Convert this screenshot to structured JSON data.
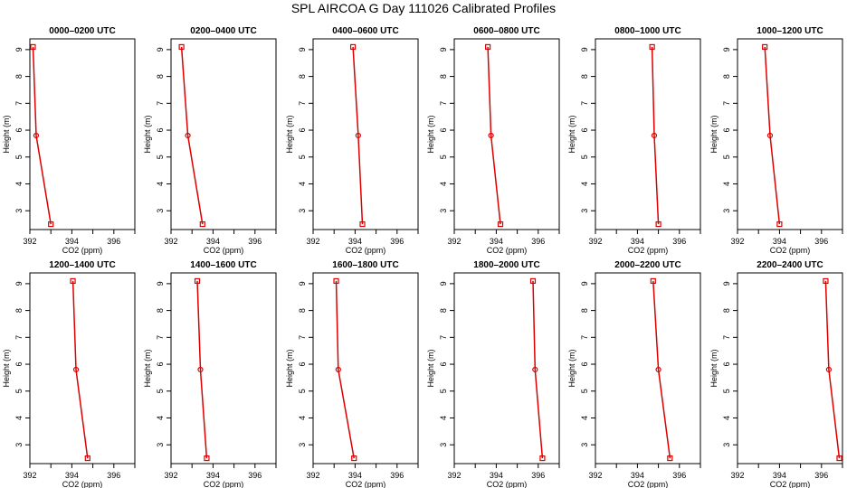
{
  "title": "SPL AIRCOA G  Day 111026  Calibrated Profiles",
  "chart_data": [
    {
      "type": "line",
      "title": "0000–0200 UTC",
      "xlabel": "CO2 (ppm)",
      "ylabel": "Height (m)",
      "xlim": [
        392,
        397
      ],
      "ylim": [
        2.3,
        9.4
      ],
      "x_ticks": [
        392,
        394,
        396
      ],
      "y_ticks": [
        3,
        4,
        5,
        6,
        7,
        8,
        9
      ],
      "color": "#dd0000",
      "points": [
        {
          "x": 392.15,
          "y": 9.1
        },
        {
          "x": 392.3,
          "y": 5.8
        },
        {
          "x": 393.0,
          "y": 2.5
        }
      ]
    },
    {
      "type": "line",
      "title": "0200–0400 UTC",
      "xlabel": "CO2 (ppm)",
      "ylabel": "Height (m)",
      "xlim": [
        392,
        397
      ],
      "ylim": [
        2.3,
        9.4
      ],
      "x_ticks": [
        392,
        394,
        396
      ],
      "y_ticks": [
        3,
        4,
        5,
        6,
        7,
        8,
        9
      ],
      "color": "#dd0000",
      "points": [
        {
          "x": 392.5,
          "y": 9.1
        },
        {
          "x": 392.8,
          "y": 5.8
        },
        {
          "x": 393.5,
          "y": 2.5
        }
      ]
    },
    {
      "type": "line",
      "title": "0400–0600 UTC",
      "xlabel": "CO2 (ppm)",
      "ylabel": "Height (m)",
      "xlim": [
        392,
        397
      ],
      "ylim": [
        2.3,
        9.4
      ],
      "x_ticks": [
        392,
        394,
        396
      ],
      "y_ticks": [
        3,
        4,
        5,
        6,
        7,
        8,
        9
      ],
      "color": "#dd0000",
      "points": [
        {
          "x": 393.9,
          "y": 9.1
        },
        {
          "x": 394.15,
          "y": 5.8
        },
        {
          "x": 394.35,
          "y": 2.5
        }
      ]
    },
    {
      "type": "line",
      "title": "0600–0800 UTC",
      "xlabel": "CO2 (ppm)",
      "ylabel": "Height (m)",
      "xlim": [
        392,
        397
      ],
      "ylim": [
        2.3,
        9.4
      ],
      "x_ticks": [
        392,
        394,
        396
      ],
      "y_ticks": [
        3,
        4,
        5,
        6,
        7,
        8,
        9
      ],
      "color": "#dd0000",
      "points": [
        {
          "x": 393.6,
          "y": 9.1
        },
        {
          "x": 393.75,
          "y": 5.8
        },
        {
          "x": 394.2,
          "y": 2.5
        }
      ]
    },
    {
      "type": "line",
      "title": "0800–1000 UTC",
      "xlabel": "CO2 (ppm)",
      "ylabel": "Height (m)",
      "xlim": [
        392,
        397
      ],
      "ylim": [
        2.3,
        9.4
      ],
      "x_ticks": [
        392,
        394,
        396
      ],
      "y_ticks": [
        3,
        4,
        5,
        6,
        7,
        8,
        9
      ],
      "color": "#dd0000",
      "points": [
        {
          "x": 394.7,
          "y": 9.1
        },
        {
          "x": 394.8,
          "y": 5.8
        },
        {
          "x": 395.0,
          "y": 2.5
        }
      ]
    },
    {
      "type": "line",
      "title": "1000–1200 UTC",
      "xlabel": "CO2 (ppm)",
      "ylabel": "Height (m)",
      "xlim": [
        392,
        397
      ],
      "ylim": [
        2.3,
        9.4
      ],
      "x_ticks": [
        392,
        394,
        396
      ],
      "y_ticks": [
        3,
        4,
        5,
        6,
        7,
        8,
        9
      ],
      "color": "#dd0000",
      "points": [
        {
          "x": 393.3,
          "y": 9.1
        },
        {
          "x": 393.55,
          "y": 5.8
        },
        {
          "x": 394.0,
          "y": 2.5
        }
      ]
    },
    {
      "type": "line",
      "title": "1200–1400 UTC",
      "xlabel": "CO2 (ppm)",
      "ylabel": "Height (m)",
      "xlim": [
        392,
        397
      ],
      "ylim": [
        2.3,
        9.4
      ],
      "x_ticks": [
        392,
        394,
        396
      ],
      "y_ticks": [
        3,
        4,
        5,
        6,
        7,
        8,
        9
      ],
      "color": "#dd0000",
      "points": [
        {
          "x": 394.05,
          "y": 9.1
        },
        {
          "x": 394.2,
          "y": 5.8
        },
        {
          "x": 394.75,
          "y": 2.5
        }
      ]
    },
    {
      "type": "line",
      "title": "1400–1600 UTC",
      "xlabel": "CO2 (ppm)",
      "ylabel": "Height (m)",
      "xlim": [
        392,
        397
      ],
      "ylim": [
        2.3,
        9.4
      ],
      "x_ticks": [
        392,
        394,
        396
      ],
      "y_ticks": [
        3,
        4,
        5,
        6,
        7,
        8,
        9
      ],
      "color": "#dd0000",
      "points": [
        {
          "x": 393.25,
          "y": 9.1
        },
        {
          "x": 393.4,
          "y": 5.8
        },
        {
          "x": 393.7,
          "y": 2.5
        }
      ]
    },
    {
      "type": "line",
      "title": "1600–1800 UTC",
      "xlabel": "CO2 (ppm)",
      "ylabel": "Height (m)",
      "xlim": [
        392,
        397
      ],
      "ylim": [
        2.3,
        9.4
      ],
      "x_ticks": [
        392,
        394,
        396
      ],
      "y_ticks": [
        3,
        4,
        5,
        6,
        7,
        8,
        9
      ],
      "color": "#dd0000",
      "points": [
        {
          "x": 393.1,
          "y": 9.1
        },
        {
          "x": 393.2,
          "y": 5.8
        },
        {
          "x": 393.95,
          "y": 2.5
        }
      ]
    },
    {
      "type": "line",
      "title": "1800–2000 UTC",
      "xlabel": "CO2 (ppm)",
      "ylabel": "Height (m)",
      "xlim": [
        392,
        397
      ],
      "ylim": [
        2.3,
        9.4
      ],
      "x_ticks": [
        392,
        394,
        396
      ],
      "y_ticks": [
        3,
        4,
        5,
        6,
        7,
        8,
        9
      ],
      "color": "#dd0000",
      "points": [
        {
          "x": 395.75,
          "y": 9.1
        },
        {
          "x": 395.85,
          "y": 5.8
        },
        {
          "x": 396.2,
          "y": 2.5
        }
      ]
    },
    {
      "type": "line",
      "title": "2000–2200 UTC",
      "xlabel": "CO2 (ppm)",
      "ylabel": "Height (m)",
      "xlim": [
        392,
        397
      ],
      "ylim": [
        2.3,
        9.4
      ],
      "x_ticks": [
        392,
        394,
        396
      ],
      "y_ticks": [
        3,
        4,
        5,
        6,
        7,
        8,
        9
      ],
      "color": "#dd0000",
      "points": [
        {
          "x": 394.75,
          "y": 9.1
        },
        {
          "x": 395.0,
          "y": 5.8
        },
        {
          "x": 395.55,
          "y": 2.5
        }
      ]
    },
    {
      "type": "line",
      "title": "2200–2400 UTC",
      "xlabel": "CO2 (ppm)",
      "ylabel": "Height (m)",
      "xlim": [
        392,
        397
      ],
      "ylim": [
        2.3,
        9.4
      ],
      "x_ticks": [
        392,
        394,
        396
      ],
      "y_ticks": [
        3,
        4,
        5,
        6,
        7,
        8,
        9
      ],
      "color": "#dd0000",
      "points": [
        {
          "x": 396.2,
          "y": 9.1
        },
        {
          "x": 396.35,
          "y": 5.8
        },
        {
          "x": 396.85,
          "y": 2.5
        }
      ]
    }
  ]
}
